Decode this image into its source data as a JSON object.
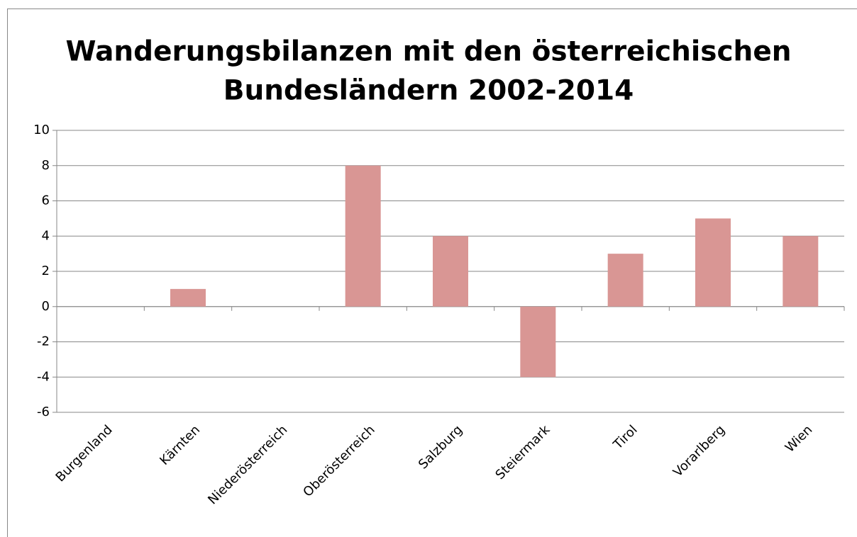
{
  "chart_data": {
    "type": "bar",
    "title": [
      "Wanderungsbilanzen mit den österreichischen",
      "Bundesländern 2002-2014"
    ],
    "categories": [
      "Burgenland",
      "Kärnten",
      "Niederösterreich",
      "Oberösterreich",
      "Salzburg",
      "Steiermark",
      "Tirol",
      "Vorarlberg",
      "Wien"
    ],
    "values": [
      0,
      1,
      0,
      8,
      4,
      -4,
      3,
      5,
      4
    ],
    "color": "#d99694",
    "ylim": [
      -6,
      10
    ],
    "yticks": [
      -6,
      -4,
      -2,
      0,
      2,
      4,
      6,
      8,
      10
    ],
    "grid": true
  }
}
